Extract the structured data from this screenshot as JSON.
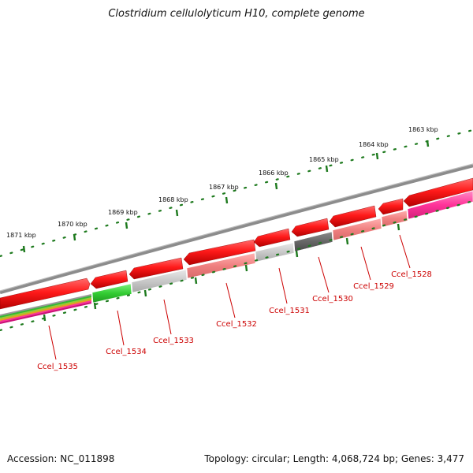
{
  "title": "Clostridium cellulolyticum H10, complete genome",
  "footer": {
    "accession": "Accession: NC_011898",
    "summary": "Topology: circular; Length: 4,068,724 bp; Genes: 3,477"
  },
  "colors": {
    "backbone": "#8c8c8c",
    "cds": "#ff1a1a",
    "label": "#cc0000",
    "tick": "#1e7a1e",
    "pink": "#ff3399",
    "green": "#33cc33",
    "light_gray": "#c8c8c8",
    "dark_gray": "#666666",
    "salmon": "#f08080"
  },
  "kbp_labels": [
    "1863 kbp",
    "1864 kbp",
    "1865 kbp",
    "1866 kbp",
    "1867 kbp",
    "1868 kbp",
    "1869 kbp",
    "1870 kbp",
    "1871 kbp"
  ],
  "genes": [
    "Ccel_1528",
    "Ccel_1529",
    "Ccel_1530",
    "Ccel_1531",
    "Ccel_1532",
    "Ccel_1533",
    "Ccel_1534",
    "Ccel_1535"
  ]
}
